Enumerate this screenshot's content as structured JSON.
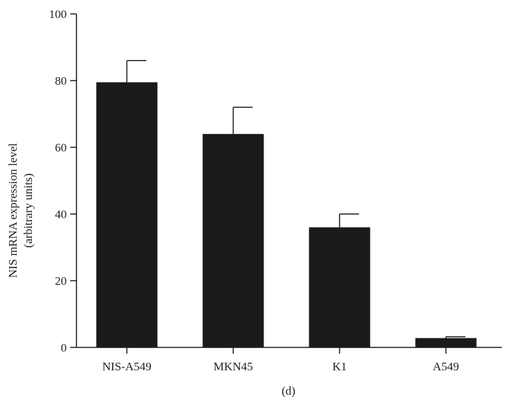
{
  "chart_data": {
    "type": "bar",
    "categories": [
      "NIS-A549",
      "MKN45",
      "K1",
      "A549"
    ],
    "values": [
      79.5,
      64,
      36,
      2.8
    ],
    "error_upper": [
      86,
      72,
      40,
      3.2
    ],
    "ylabel_line1": "NIS mRNA expression level",
    "ylabel_line2": "(arbitrary units)",
    "xlabel": "",
    "title": "",
    "panel_label": "(d)",
    "ylim": [
      0,
      100
    ],
    "yticks": [
      "0",
      "20",
      "40",
      "60",
      "80",
      "100"
    ],
    "bar_color": "#1a1a1a",
    "axis_color": "#1a1a1a",
    "grid": false,
    "legend": "none"
  }
}
